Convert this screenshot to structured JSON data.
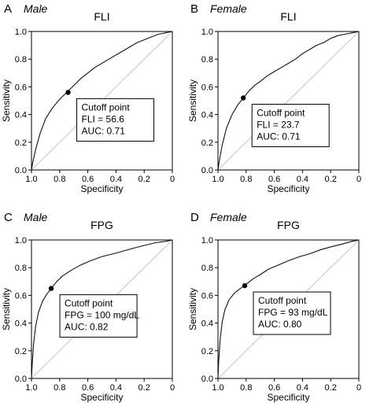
{
  "chart_data": [
    {
      "type": "line",
      "panel_label": "A",
      "group": "Male",
      "title": "FLI",
      "xlabel": "Specificity",
      "ylabel": "Sensitivity",
      "x_ticks": [
        "1.0",
        "0.8",
        "0.6",
        "0.4",
        "0.2",
        "0"
      ],
      "y_ticks": [
        "0.0",
        "0.2",
        "0.4",
        "0.6",
        "0.8",
        "1.0"
      ],
      "xlim": [
        1.0,
        0.0
      ],
      "ylim": [
        0.0,
        1.0
      ],
      "series": [
        {
          "x": [
            1.0,
            0.99,
            0.97,
            0.94,
            0.9,
            0.85,
            0.8,
            0.75,
            0.7,
            0.65,
            0.6,
            0.55,
            0.5,
            0.45,
            0.4,
            0.35,
            0.3,
            0.25,
            0.2,
            0.15,
            0.1,
            0.05,
            0.0
          ],
          "y": [
            0.0,
            0.06,
            0.15,
            0.26,
            0.37,
            0.45,
            0.51,
            0.56,
            0.61,
            0.66,
            0.7,
            0.74,
            0.77,
            0.8,
            0.83,
            0.86,
            0.89,
            0.92,
            0.94,
            0.96,
            0.98,
            0.99,
            1.0
          ]
        }
      ],
      "cutoff": {
        "x": 0.74,
        "y": 0.56
      },
      "annotation": [
        "Cutoff point",
        "FLI = 56.6",
        "AUC: 0.71"
      ],
      "reference_line": true
    },
    {
      "type": "line",
      "panel_label": "B",
      "group": "Female",
      "title": "FLI",
      "xlabel": "Specificity",
      "ylabel": "Sensitivity",
      "x_ticks": [
        "1.0",
        "0.8",
        "0.6",
        "0.4",
        "0.2",
        "0"
      ],
      "y_ticks": [
        "0.0",
        "0.2",
        "0.4",
        "0.6",
        "0.8",
        "1.0"
      ],
      "xlim": [
        1.0,
        0.0
      ],
      "ylim": [
        0.0,
        1.0
      ],
      "series": [
        {
          "x": [
            1.0,
            0.99,
            0.97,
            0.94,
            0.9,
            0.86,
            0.82,
            0.78,
            0.74,
            0.7,
            0.65,
            0.6,
            0.55,
            0.5,
            0.45,
            0.4,
            0.35,
            0.3,
            0.25,
            0.2,
            0.15,
            0.1,
            0.05,
            0.0
          ],
          "y": [
            0.0,
            0.07,
            0.18,
            0.3,
            0.4,
            0.47,
            0.52,
            0.57,
            0.61,
            0.64,
            0.68,
            0.71,
            0.74,
            0.77,
            0.8,
            0.84,
            0.87,
            0.9,
            0.92,
            0.95,
            0.97,
            0.98,
            0.99,
            1.0
          ]
        }
      ],
      "cutoff": {
        "x": 0.82,
        "y": 0.52
      },
      "annotation": [
        "Cutoff point",
        "FLI = 23.7",
        "AUC: 0.71"
      ],
      "reference_line": true
    },
    {
      "type": "line",
      "panel_label": "C",
      "group": "Male",
      "title": "FPG",
      "xlabel": "Specificity",
      "ylabel": "Sensitivity",
      "x_ticks": [
        "1.0",
        "0.8",
        "0.6",
        "0.4",
        "0.2",
        "0"
      ],
      "y_ticks": [
        "0.0",
        "0.2",
        "0.4",
        "0.6",
        "0.8",
        "1.0"
      ],
      "xlim": [
        1.0,
        0.0
      ],
      "ylim": [
        0.0,
        1.0
      ],
      "series": [
        {
          "x": [
            1.0,
            0.995,
            0.985,
            0.97,
            0.95,
            0.92,
            0.89,
            0.86,
            0.82,
            0.78,
            0.72,
            0.65,
            0.58,
            0.5,
            0.42,
            0.35,
            0.28,
            0.2,
            0.12,
            0.05,
            0.0
          ],
          "y": [
            0.0,
            0.1,
            0.25,
            0.38,
            0.48,
            0.56,
            0.61,
            0.65,
            0.7,
            0.74,
            0.78,
            0.82,
            0.85,
            0.88,
            0.9,
            0.92,
            0.94,
            0.96,
            0.98,
            0.99,
            1.0
          ]
        }
      ],
      "cutoff": {
        "x": 0.86,
        "y": 0.65
      },
      "annotation": [
        "Cutoff point",
        "FPG = 100 mg/dL",
        "AUC: 0.82"
      ],
      "reference_line": true
    },
    {
      "type": "line",
      "panel_label": "D",
      "group": "Female",
      "title": "FPG",
      "xlabel": "Specificity",
      "ylabel": "Sensitivity",
      "x_ticks": [
        "1.0",
        "0.8",
        "0.6",
        "0.4",
        "0.2",
        "0"
      ],
      "y_ticks": [
        "0.0",
        "0.2",
        "0.4",
        "0.6",
        "0.8",
        "1.0"
      ],
      "xlim": [
        1.0,
        0.0
      ],
      "ylim": [
        0.0,
        1.0
      ],
      "series": [
        {
          "x": [
            1.0,
            0.995,
            0.985,
            0.97,
            0.95,
            0.92,
            0.88,
            0.84,
            0.8,
            0.75,
            0.7,
            0.64,
            0.57,
            0.5,
            0.42,
            0.35,
            0.27,
            0.2,
            0.12,
            0.05,
            0.0
          ],
          "y": [
            0.0,
            0.12,
            0.28,
            0.41,
            0.5,
            0.57,
            0.62,
            0.65,
            0.68,
            0.72,
            0.75,
            0.79,
            0.82,
            0.85,
            0.88,
            0.9,
            0.93,
            0.95,
            0.97,
            0.99,
            1.0
          ]
        }
      ],
      "cutoff": {
        "x": 0.81,
        "y": 0.67
      },
      "annotation": [
        "Cutoff point",
        "FPG = 93 mg/dL",
        "AUC: 0.80"
      ],
      "reference_line": true
    }
  ]
}
